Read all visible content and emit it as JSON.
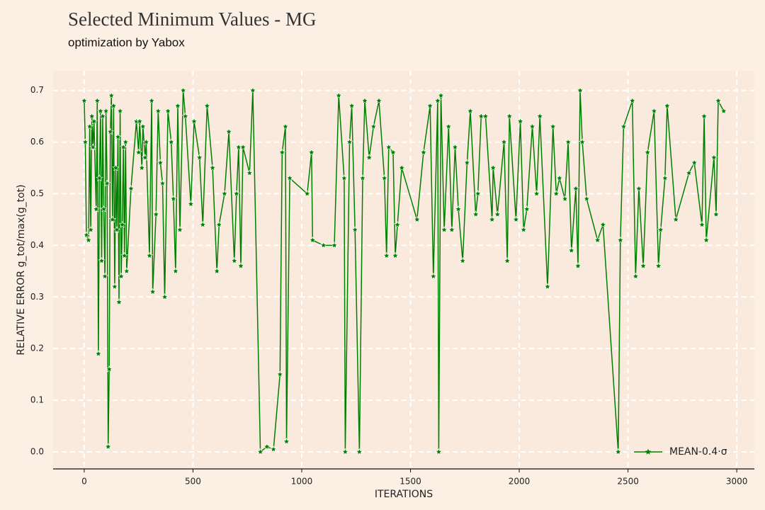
{
  "chart_data": {
    "type": "line",
    "title": "Selected Minimum Values - MG",
    "subtitle": "optimization by Yabox",
    "xlabel": "ITERATIONS",
    "ylabel": "RELATIVE ERROR g_tot/max(g_tot)",
    "legend": "lower right",
    "grid": true,
    "xlim": [
      -143,
      3081
    ],
    "ylim": [
      -0.033,
      0.738
    ],
    "xticks": [
      0,
      500,
      1000,
      1500,
      2000,
      2500,
      3000
    ],
    "yticks": [
      {
        "value": 0,
        "label": "0.0"
      },
      0.1,
      0.2,
      0.3,
      0.4,
      0.5,
      0.6,
      0.7
    ],
    "series": [
      {
        "name": "MEAN-0.4·σ",
        "color": "#008000",
        "x": [
          0,
          5,
          10,
          20,
          25,
          30,
          35,
          40,
          45,
          55,
          60,
          65,
          70,
          75,
          80,
          85,
          90,
          95,
          100,
          105,
          110,
          115,
          120,
          125,
          130,
          135,
          140,
          145,
          150,
          155,
          160,
          165,
          170,
          175,
          180,
          185,
          190,
          195,
          215,
          240,
          250,
          255,
          265,
          270,
          280,
          285,
          300,
          310,
          315,
          330,
          340,
          350,
          360,
          370,
          385,
          400,
          410,
          420,
          430,
          440,
          455,
          465,
          490,
          505,
          530,
          545,
          565,
          590,
          610,
          620,
          645,
          665,
          690,
          700,
          710,
          720,
          730,
          760,
          775,
          810,
          840,
          870,
          900,
          910,
          925,
          930,
          945,
          1025,
          1045,
          1050,
          1100,
          1150,
          1170,
          1195,
          1200,
          1220,
          1230,
          1245,
          1265,
          1280,
          1290,
          1310,
          1330,
          1355,
          1380,
          1390,
          1400,
          1420,
          1430,
          1440,
          1460,
          1530,
          1560,
          1590,
          1605,
          1625,
          1630,
          1640,
          1655,
          1675,
          1690,
          1705,
          1720,
          1740,
          1760,
          1775,
          1800,
          1810,
          1825,
          1845,
          1875,
          1880,
          1900,
          1930,
          1945,
          1955,
          1985,
          2005,
          2020,
          2035,
          2060,
          2080,
          2095,
          2130,
          2155,
          2170,
          2185,
          2210,
          2225,
          2240,
          2260,
          2270,
          2280,
          2290,
          2310,
          2360,
          2385,
          2455,
          2465,
          2480,
          2520,
          2535,
          2550,
          2570,
          2590,
          2620,
          2640,
          2650,
          2670,
          2680,
          2720,
          2780,
          2805,
          2840,
          2850,
          2860,
          2895,
          2905,
          2915,
          2940
        ],
        "values": [
          0.68,
          0.6,
          0.42,
          0.41,
          0.63,
          0.43,
          0.65,
          0.59,
          0.64,
          0.47,
          0.68,
          0.19,
          0.53,
          0.66,
          0.37,
          0.65,
          0.47,
          0.34,
          0.66,
          0.52,
          0.01,
          0.16,
          0.62,
          0.69,
          0.45,
          0.67,
          0.32,
          0.55,
          0.43,
          0.61,
          0.29,
          0.66,
          0.34,
          0.44,
          0.59,
          0.38,
          0.6,
          0.35,
          0.51,
          0.64,
          0.58,
          0.64,
          0.55,
          0.63,
          0.57,
          0.6,
          0.38,
          0.68,
          0.31,
          0.46,
          0.66,
          0.56,
          0.52,
          0.3,
          0.66,
          0.6,
          0.49,
          0.35,
          0.67,
          0.43,
          0.7,
          0.65,
          0.48,
          0.64,
          0.57,
          0.44,
          0.67,
          0.55,
          0.35,
          0.44,
          0.5,
          0.62,
          0.37,
          0.5,
          0.59,
          0.36,
          0.59,
          0.54,
          0.7,
          0.0,
          0.01,
          0.005,
          0.15,
          0.58,
          0.63,
          0.02,
          0.53,
          0.5,
          0.58,
          0.41,
          0.4,
          0.4,
          0.69,
          0.53,
          0.0,
          0.6,
          0.67,
          0.43,
          0.0,
          0.53,
          0.68,
          0.57,
          0.63,
          0.68,
          0.53,
          0.38,
          0.59,
          0.58,
          0.38,
          0.44,
          0.55,
          0.45,
          0.58,
          0.67,
          0.34,
          0.68,
          0.0,
          0.69,
          0.43,
          0.63,
          0.43,
          0.59,
          0.47,
          0.37,
          0.56,
          0.66,
          0.46,
          0.5,
          0.65,
          0.65,
          0.45,
          0.55,
          0.46,
          0.6,
          0.37,
          0.65,
          0.45,
          0.64,
          0.43,
          0.47,
          0.63,
          0.5,
          0.65,
          0.32,
          0.63,
          0.5,
          0.53,
          0.49,
          0.6,
          0.39,
          0.51,
          0.36,
          0.7,
          0.6,
          0.49,
          0.41,
          0.44,
          0.0,
          0.41,
          0.63,
          0.68,
          0.34,
          0.51,
          0.36,
          0.58,
          0.66,
          0.36,
          0.43,
          0.53,
          0.67,
          0.45,
          0.54,
          0.56,
          0.44,
          0.65,
          0.41,
          0.57,
          0.46,
          0.68,
          0.66
        ]
      }
    ]
  }
}
